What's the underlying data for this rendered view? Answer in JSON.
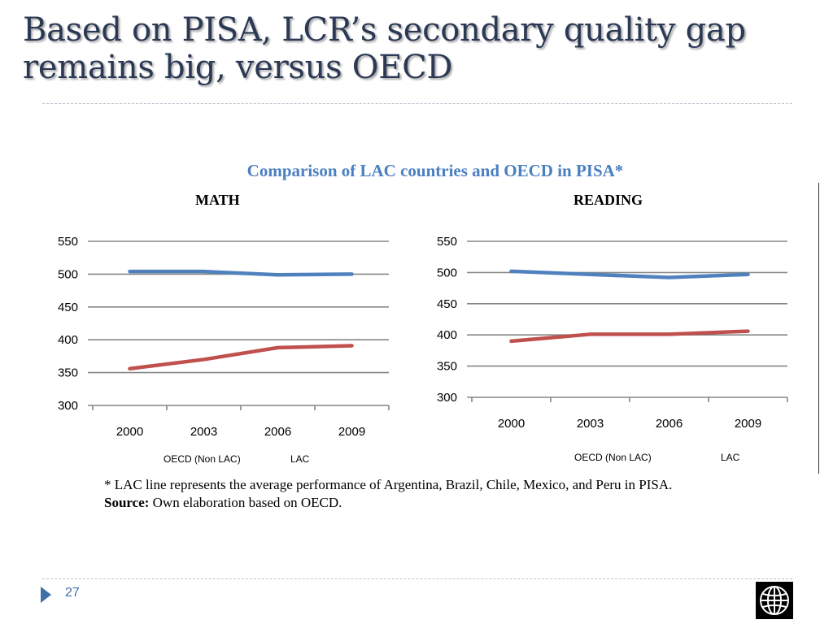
{
  "slide": {
    "title_line1": "Based on PISA, LCR’s secondary quality gap",
    "title_line2": "remains big, versus OECD",
    "page_number": "27"
  },
  "chart_heading": "Comparison of LAC countries and OECD in PISA*",
  "footnote": {
    "note": "* LAC line represents the average performance of Argentina, Brazil, Chile, Mexico, and Peru in PISA.",
    "source_label": "Source:",
    "source_text": " Own elaboration based on OECD."
  },
  "colors": {
    "oecd": "#4f81bd",
    "lac": "#c0504d",
    "grid": "#868686"
  },
  "logo_icon": "world-bank-globe-icon",
  "chart_data": [
    {
      "type": "line",
      "title": "MATH",
      "categories": [
        "2000",
        "2003",
        "2006",
        "2009"
      ],
      "series": [
        {
          "name": "OECD (Non LAC)",
          "values": [
            504,
            504,
            499,
            500
          ]
        },
        {
          "name": "LAC",
          "values": [
            356,
            370,
            388,
            391
          ]
        }
      ],
      "ylim": [
        300,
        550
      ],
      "yticks": [
        300,
        350,
        400,
        450,
        500,
        550
      ],
      "grid": true,
      "legend": "bottom"
    },
    {
      "type": "line",
      "title": "READING",
      "categories": [
        "2000",
        "2003",
        "2006",
        "2009"
      ],
      "series": [
        {
          "name": "OECD (Non LAC)",
          "values": [
            502,
            497,
            492,
            497
          ]
        },
        {
          "name": "LAC",
          "values": [
            390,
            401,
            401,
            406
          ]
        }
      ],
      "ylim": [
        300,
        550
      ],
      "yticks": [
        300,
        350,
        400,
        450,
        500,
        550
      ],
      "grid": true,
      "legend": "bottom"
    }
  ]
}
